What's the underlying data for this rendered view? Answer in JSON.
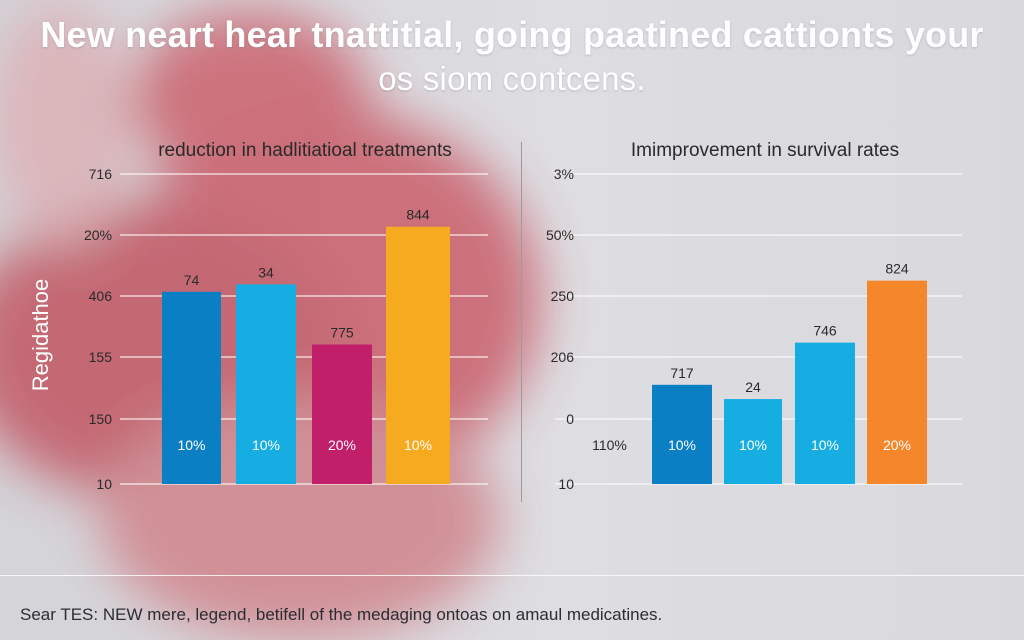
{
  "header": {
    "line1": "New neart hear tnattitial, going paatined cattionts your",
    "line2": "os siom contcens."
  },
  "caption": "Sear TES: NEW mere, legend, betifell of the medaging ontoas on amaul medicatines.",
  "colors": {
    "blue": "#0a7fc4",
    "cyan": "#16ade2",
    "magenta": "#c21f6b",
    "yellow": "#f5aa1f",
    "orange": "#f5862a",
    "grid": "#ffffff",
    "tick": "#2a2a2a"
  },
  "chart_data": [
    {
      "type": "bar",
      "title": "reduction in hadlitiatioal treatments",
      "ylabel": "Regidathoe",
      "xlabel": "",
      "y_tick_labels": [
        "716",
        "20%",
        "406",
        "155",
        "150",
        "10"
      ],
      "ylim": [
        0,
        5
      ],
      "grid": true,
      "categories": [
        "10%",
        "10%",
        "20%",
        "10%"
      ],
      "values": [
        3.1,
        3.22,
        2.25,
        4.15
      ],
      "data_labels": [
        "74",
        "34",
        "775",
        "844"
      ],
      "bar_colors": [
        "blue",
        "cyan",
        "magenta",
        "yellow"
      ]
    },
    {
      "type": "bar",
      "title": "Imimprovement in survival rates",
      "ylabel": "",
      "xlabel": "",
      "y_tick_labels": [
        "3%",
        "50%",
        "250",
        "206",
        "0",
        "10"
      ],
      "ylim": [
        0,
        5
      ],
      "grid": true,
      "categories": [
        "110%",
        "10%",
        "10%",
        "10%",
        "20%"
      ],
      "values": [
        0,
        1.6,
        1.37,
        2.28,
        3.28
      ],
      "data_labels": [
        "",
        "717",
        "24",
        "746",
        "824"
      ],
      "bar_colors": [
        "blue",
        "blue",
        "cyan",
        "cyan",
        "orange"
      ]
    }
  ]
}
